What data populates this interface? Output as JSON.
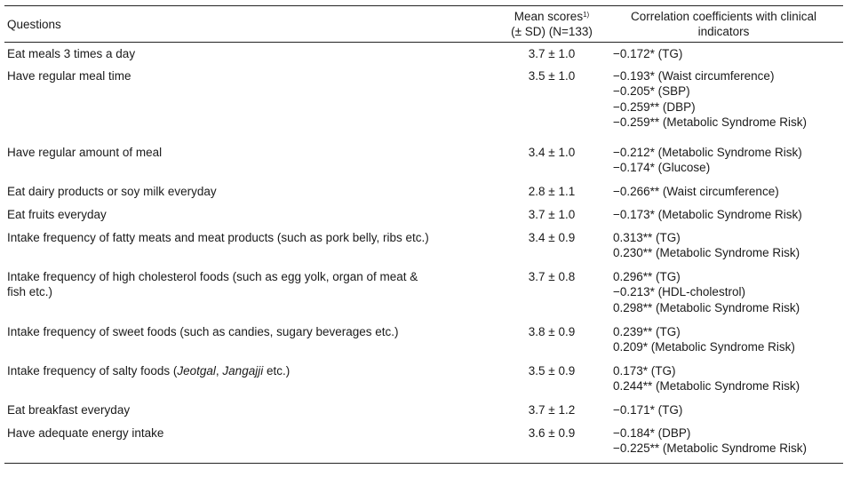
{
  "header": {
    "questions": "Questions",
    "mean_line1": "Mean scores",
    "mean_sup": "1)",
    "mean_line2": "(± SD) (N=133)",
    "corr_line1": "Correlation coefficients with clinical",
    "corr_line2": "indicators"
  },
  "rows": [
    {
      "q": "Eat meals 3 times a day",
      "m": "3.7 ± 1.0",
      "c": [
        "−0.172* (TG)"
      ]
    },
    {
      "q": "Have regular meal time",
      "m": "3.5 ± 1.0",
      "c": [
        "−0.193* (Waist circumference)",
        "−0.205* (SBP)",
        "−0.259** (DBP)",
        "−0.259** (Metabolic Syndrome Risk)"
      ]
    },
    {
      "q": "Have regular amount of meal",
      "m": "3.4 ± 1.0",
      "c": [
        "−0.212* (Metabolic Syndrome Risk)",
        "−0.174* (Glucose)"
      ]
    },
    {
      "q": "Eat dairy products or soy milk everyday",
      "m": "2.8 ± 1.1",
      "c": [
        "−0.266** (Waist circumference)"
      ]
    },
    {
      "q": "Eat fruits everyday",
      "m": "3.7 ± 1.0",
      "c": [
        "−0.173* (Metabolic Syndrome Risk)"
      ]
    },
    {
      "q": "Intake frequency of fatty meats and meat products (such as pork belly, ribs etc.)",
      "m": "3.4 ± 0.9",
      "c": [
        "0.313** (TG)",
        "0.230** (Metabolic Syndrome Risk)"
      ]
    },
    {
      "q_lines": [
        "Intake frequency of high cholesterol foods (such as egg yolk, organ of meat &",
        "fish etc.)"
      ],
      "m": "3.7 ± 0.8",
      "c": [
        "0.296** (TG)",
        "−0.213* (HDL-cholestrol)",
        "0.298** (Metabolic Syndrome Risk)"
      ]
    },
    {
      "q": "Intake frequency of sweet foods (such as candies, sugary beverages etc.)",
      "m": "3.8 ± 0.9",
      "c": [
        "0.239** (TG)",
        "0.209* (Metabolic Syndrome Risk)"
      ]
    },
    {
      "q_parts": [
        "Intake frequency of salty foods (",
        "Jeotgal",
        ", ",
        "Jangajji",
        " etc.)"
      ],
      "m": "3.5 ± 0.9",
      "c": [
        "0.173* (TG)",
        "0.244** (Metabolic Syndrome Risk)"
      ]
    },
    {
      "q": "Eat breakfast everyday",
      "m": "3.7 ± 1.2",
      "c": [
        "−0.171* (TG)"
      ]
    },
    {
      "q": "Have adequate energy intake",
      "m": "3.6 ± 0.9",
      "c": [
        "−0.184* (DBP)",
        "−0.225** (Metabolic Syndrome Risk)"
      ]
    }
  ]
}
